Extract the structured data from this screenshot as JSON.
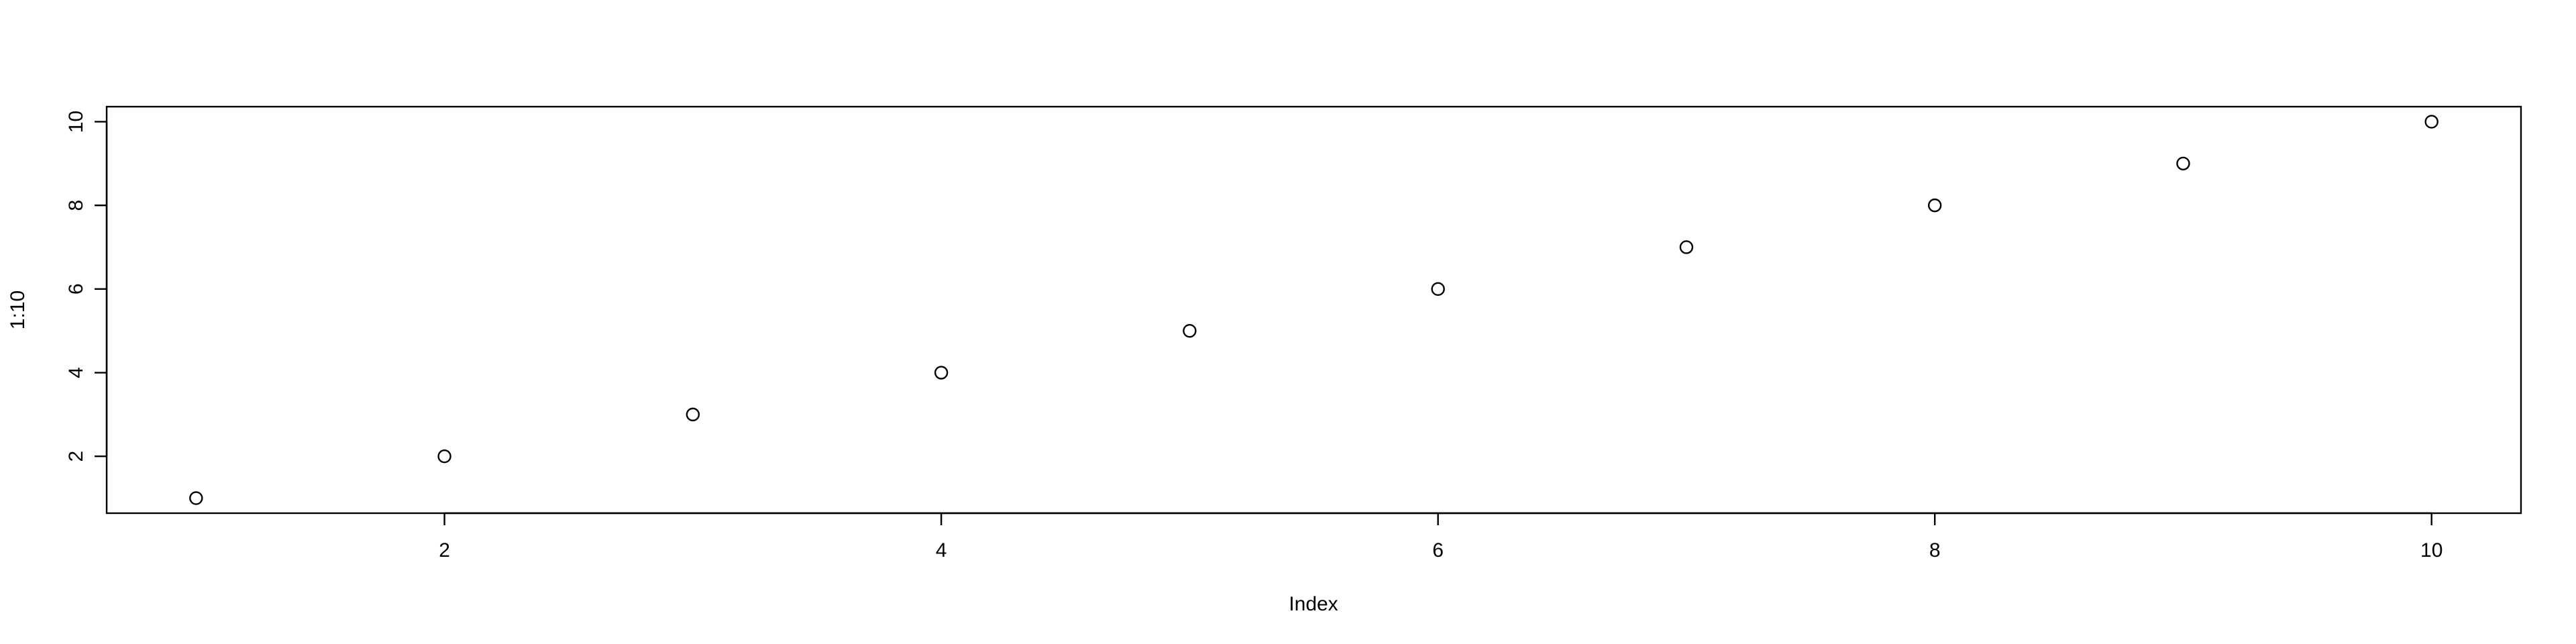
{
  "chart_data": {
    "type": "scatter",
    "title": "",
    "xlabel": "Index",
    "ylabel": "1:10",
    "x": [
      1,
      2,
      3,
      4,
      5,
      6,
      7,
      8,
      9,
      10
    ],
    "y": [
      1,
      2,
      3,
      4,
      5,
      6,
      7,
      8,
      9,
      10
    ],
    "xlim": [
      0.64,
      10.36
    ],
    "ylim": [
      0.64,
      10.36
    ],
    "x_ticks": [
      2,
      4,
      6,
      8,
      10
    ],
    "y_ticks": [
      2,
      4,
      6,
      8,
      10
    ],
    "grid": false,
    "legend": "none",
    "marker": "open-circle",
    "colors": {
      "point": "#000000",
      "axis": "#000000",
      "background": "#ffffff"
    }
  }
}
